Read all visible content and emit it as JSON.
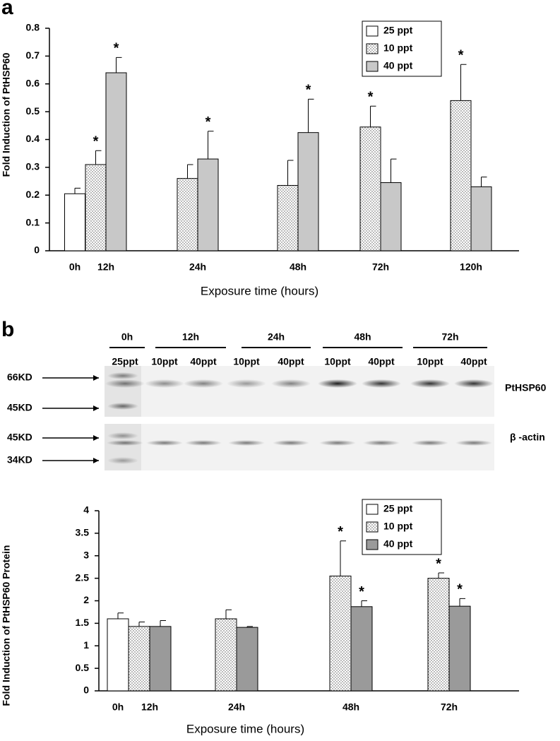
{
  "panel_labels": [
    "a",
    "b"
  ],
  "blot": {
    "times": [
      "0h",
      "12h",
      "24h",
      "48h",
      "72h"
    ],
    "lanes": [
      "25ppt",
      "10ppt",
      "40ppt",
      "10ppt",
      "40ppt",
      "10ppt",
      "40ppt",
      "10ppt",
      "40ppt"
    ],
    "markers_top": [
      "66KD",
      "45KD"
    ],
    "markers_bottom": [
      "45KD",
      "34KD"
    ],
    "targets": [
      "PtHSP60",
      "β -actin"
    ]
  },
  "chart_data": [
    {
      "type": "bar",
      "ylabel": "Fold Induction of PtHSP60",
      "xlabel": "Exposure time (hours)",
      "categories": [
        "0h",
        "12h",
        "24h",
        "48h",
        "72h",
        "120h"
      ],
      "series": [
        {
          "name": "25 ppt",
          "color": "#ffffff",
          "pattern": "none",
          "values": [
            0.205,
            null,
            null,
            null,
            null,
            null
          ],
          "errors": [
            0.02,
            null,
            null,
            null,
            null,
            null
          ],
          "significance": [
            null,
            null,
            null,
            null,
            null,
            null
          ]
        },
        {
          "name": "10 ppt",
          "color": "#ffffff",
          "pattern": "dots",
          "values": [
            null,
            0.31,
            0.26,
            0.235,
            0.445,
            0.54
          ],
          "errors": [
            null,
            0.05,
            0.05,
            0.09,
            0.075,
            0.13
          ],
          "significance": [
            null,
            "*",
            null,
            null,
            "*",
            "*"
          ]
        },
        {
          "name": "40 ppt",
          "color": "#c8c8c8",
          "pattern": "none",
          "values": [
            null,
            0.64,
            0.33,
            0.425,
            0.245,
            0.23
          ],
          "errors": [
            null,
            0.055,
            0.1,
            0.12,
            0.085,
            0.035
          ],
          "significance": [
            null,
            "*",
            "*",
            "*",
            null,
            null
          ]
        }
      ],
      "ylim": [
        0,
        0.8
      ],
      "yticks": [
        0,
        0.1,
        0.2,
        0.3,
        0.4,
        0.5,
        0.6,
        0.7,
        0.8
      ],
      "legend": "top-right"
    },
    {
      "type": "bar",
      "ylabel": "Fold Induction of PtHSP60 Protein",
      "xlabel": "Exposure time (hours)",
      "categories": [
        "0h",
        "12h",
        "24h",
        "48h",
        "72h"
      ],
      "series": [
        {
          "name": "25 ppt",
          "color": "#ffffff",
          "pattern": "none",
          "values": [
            1.6,
            null,
            null,
            null,
            null
          ],
          "errors": [
            0.13,
            null,
            null,
            null,
            null
          ],
          "significance": [
            null,
            null,
            null,
            null,
            null
          ]
        },
        {
          "name": "10 ppt",
          "color": "#ffffff",
          "pattern": "dots",
          "values": [
            null,
            1.43,
            1.6,
            2.55,
            2.5
          ],
          "errors": [
            null,
            0.1,
            0.2,
            0.78,
            0.12
          ],
          "significance": [
            null,
            null,
            null,
            "*",
            "*"
          ]
        },
        {
          "name": "40 ppt",
          "color": "#9a9a9a",
          "pattern": "none",
          "values": [
            null,
            1.43,
            1.41,
            1.87,
            1.88
          ],
          "errors": [
            null,
            0.13,
            0.02,
            0.13,
            0.17
          ],
          "significance": [
            null,
            null,
            null,
            "*",
            "*"
          ]
        }
      ],
      "ylim": [
        0,
        4
      ],
      "yticks": [
        0,
        0.5,
        1,
        1.5,
        2,
        2.5,
        3,
        3.5,
        4
      ],
      "legend": "top-right"
    }
  ]
}
